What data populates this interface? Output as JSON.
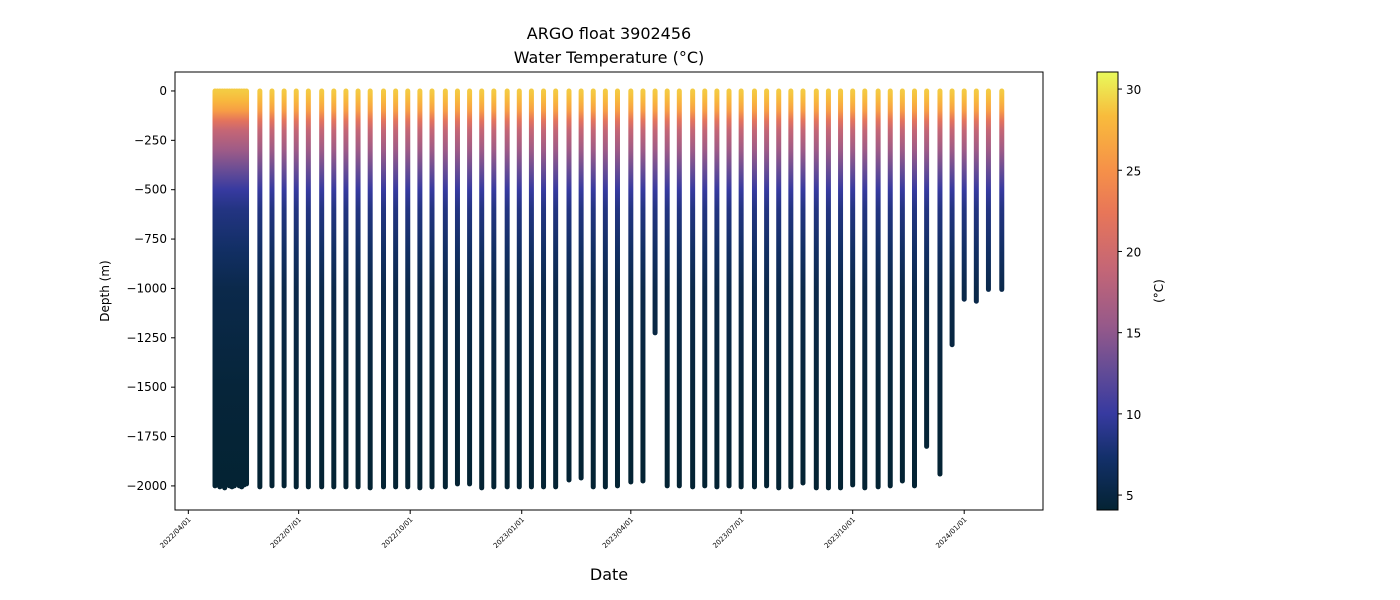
{
  "chart_data": {
    "type": "profile",
    "title": "ARGO float 3902456",
    "subtitle": "Water Temperature (°C)",
    "xlabel": "Date",
    "ylabel": "Depth (m)",
    "colorbar_label": "(°C)",
    "colormap": "thermal",
    "x": [
      "2022-04-23",
      "2022-04-25",
      "2022-04-27",
      "2022-04-29",
      "2022-05-01",
      "2022-05-03",
      "2022-05-05",
      "2022-05-07",
      "2022-05-09",
      "2022-05-11",
      "2022-05-13",
      "2022-05-15",
      "2022-05-17",
      "2022-05-19",
      "2022-05-30",
      "2022-06-09",
      "2022-06-19",
      "2022-06-29",
      "2022-07-09",
      "2022-07-20",
      "2022-07-30",
      "2022-08-09",
      "2022-08-19",
      "2022-08-29",
      "2022-09-09",
      "2022-09-19",
      "2022-09-29",
      "2022-10-09",
      "2022-10-19",
      "2022-10-30",
      "2022-11-09",
      "2022-11-19",
      "2022-11-29",
      "2022-12-09",
      "2022-12-20",
      "2022-12-30",
      "2023-01-09",
      "2023-01-19",
      "2023-01-29",
      "2023-02-09",
      "2023-02-19",
      "2023-03-01",
      "2023-03-11",
      "2023-03-21",
      "2023-04-01",
      "2023-04-11",
      "2023-04-21",
      "2023-05-01",
      "2023-05-11",
      "2023-05-22",
      "2023-06-01",
      "2023-06-11",
      "2023-06-21",
      "2023-07-01",
      "2023-07-12",
      "2023-07-22",
      "2023-08-01",
      "2023-08-11",
      "2023-08-21",
      "2023-09-01",
      "2023-09-11",
      "2023-09-21",
      "2023-10-01",
      "2023-10-11",
      "2023-10-22",
      "2023-11-01",
      "2023-11-11",
      "2023-11-21",
      "2023-12-01",
      "2023-12-12",
      "2023-12-22",
      "2024-01-01",
      "2024-01-11",
      "2024-01-21",
      "2024-02-01"
    ],
    "values": [
      -2000,
      -1995,
      -2005,
      -2000,
      -2010,
      -1995,
      -2000,
      -2005,
      -2000,
      -1990,
      -2000,
      -2005,
      -1995,
      -1990,
      -2005,
      -2000,
      -2000,
      -2005,
      -2005,
      -2005,
      -2005,
      -2005,
      -2005,
      -2010,
      -2005,
      -2005,
      -2005,
      -2010,
      -2005,
      -2005,
      -1990,
      -1990,
      -2010,
      -2005,
      -2005,
      -2005,
      -2005,
      -2005,
      -2005,
      -1970,
      -1960,
      -2005,
      -2005,
      -2000,
      -1980,
      -1975,
      -1225,
      -2000,
      -2000,
      -2005,
      -2000,
      -2005,
      -2000,
      -2005,
      -2005,
      -2000,
      -2010,
      -2005,
      -1985,
      -2010,
      -2010,
      -2010,
      -1995,
      -2010,
      -2005,
      -2000,
      -1975,
      -2000,
      -1800,
      -1940,
      -1285,
      -1055,
      -1065,
      -1005,
      -1005
    ],
    "temperature_profile": {
      "depth": [
        0,
        -50,
        -100,
        -150,
        -200,
        -300,
        -400,
        -500,
        -600,
        -800,
        -1000,
        -1500,
        -2000
      ],
      "temp": [
        29,
        28,
        26,
        22,
        19,
        16,
        13,
        10,
        8.5,
        7,
        5.5,
        4.5,
        4.1
      ]
    },
    "xlim": [
      "2022-03-21",
      "2024-03-06"
    ],
    "xticks": [
      {
        "value": "2022-04-01",
        "label": "2022/04/01"
      },
      {
        "value": "2022-07-01",
        "label": "2022/07/01"
      },
      {
        "value": "2022-10-01",
        "label": "2022/10/01"
      },
      {
        "value": "2023-01-01",
        "label": "2023/01/01"
      },
      {
        "value": "2023-04-01",
        "label": "2023/04/01"
      },
      {
        "value": "2023-07-01",
        "label": "2023/07/01"
      },
      {
        "value": "2023-10-01",
        "label": "2023/10/01"
      },
      {
        "value": "2024-01-01",
        "label": "2024/01/01"
      }
    ],
    "ylim": [
      -2122,
      96
    ],
    "yticks": [
      0,
      {
        "value": -250,
        "label": "−250"
      },
      {
        "value": -500,
        "label": "−500"
      },
      {
        "value": -750,
        "label": "−750"
      },
      {
        "value": -1000,
        "label": "−1000"
      },
      {
        "value": -1250,
        "label": "−1250"
      },
      {
        "value": -1500,
        "label": "−1500"
      },
      {
        "value": -1750,
        "label": "−1750"
      },
      {
        "value": -2000,
        "label": "−2000"
      }
    ],
    "clim": [
      4.08,
      31.05
    ],
    "cticks": [
      5,
      10,
      15,
      20,
      25,
      30
    ]
  }
}
